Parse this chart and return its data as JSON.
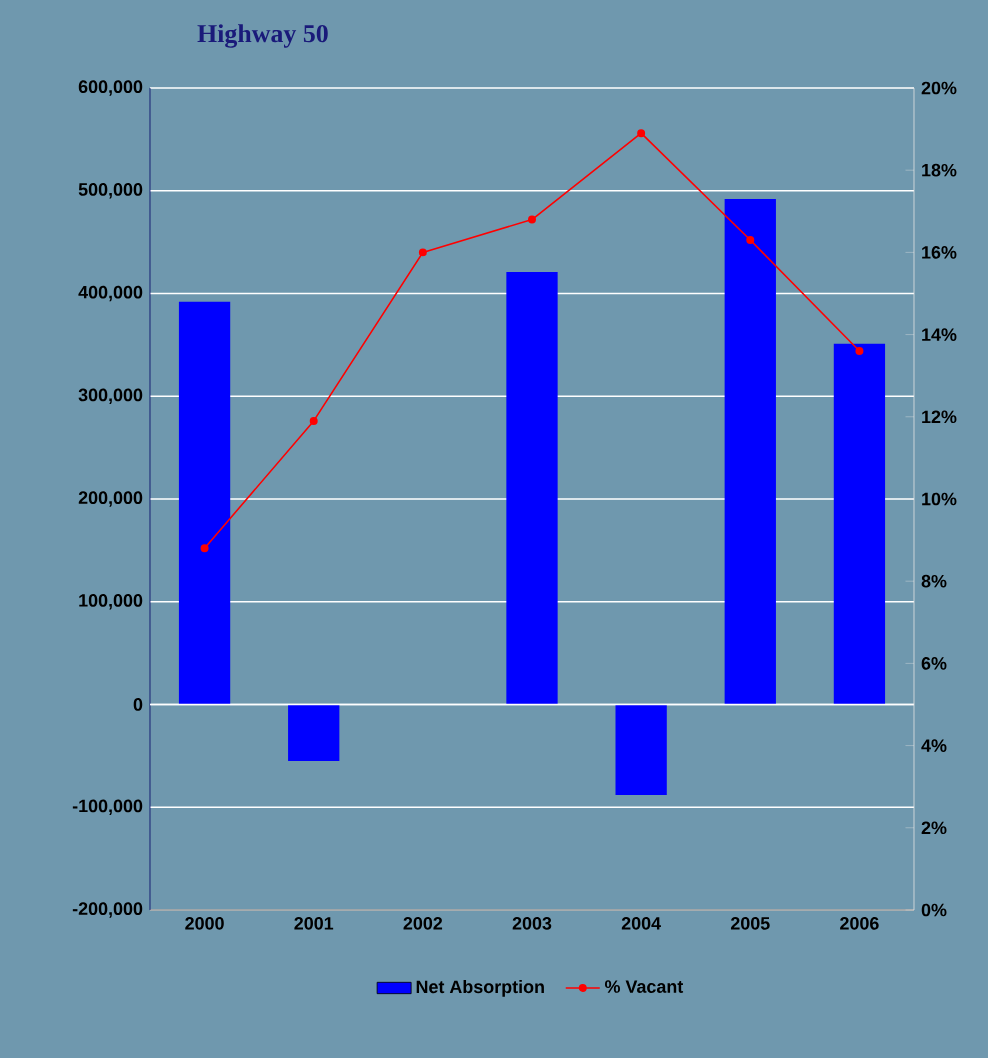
{
  "chart_data": {
    "type": "bar",
    "title": "Highway 50",
    "categories": [
      "2000",
      "2001",
      "2002",
      "2003",
      "2004",
      "2005",
      "2006"
    ],
    "series": [
      {
        "name": "Net Absorption",
        "color": "#0000ff",
        "values": [
          392000,
          -55000,
          0,
          421000,
          -88000,
          492000,
          351000
        ]
      },
      {
        "name": "% Vacant",
        "type": "line",
        "axis": "y2",
        "color": "#ff0000",
        "values": [
          8.8,
          11.9,
          16.0,
          16.8,
          18.9,
          16.3,
          13.6
        ]
      }
    ],
    "ylim": [
      -200000,
      600000
    ],
    "yticks": [
      {
        "value": -200000,
        "label": "-200,000"
      },
      {
        "value": -100000,
        "label": "-100,000"
      },
      {
        "value": 0,
        "label": "0"
      },
      {
        "value": 100000,
        "label": "100,000"
      },
      {
        "value": 200000,
        "label": "200,000"
      },
      {
        "value": 300000,
        "label": "300,000"
      },
      {
        "value": 400000,
        "label": "400,000"
      },
      {
        "value": 500000,
        "label": "500,000"
      },
      {
        "value": 600000,
        "label": "600,000"
      }
    ],
    "y2lim": [
      0,
      20
    ],
    "y2ticks": [
      {
        "value": 0,
        "label": "0%"
      },
      {
        "value": 2,
        "label": "2%"
      },
      {
        "value": 4,
        "label": "4%"
      },
      {
        "value": 6,
        "label": "6%"
      },
      {
        "value": 8,
        "label": "8%"
      },
      {
        "value": 10,
        "label": "10%"
      },
      {
        "value": 12,
        "label": "12%"
      },
      {
        "value": 14,
        "label": "14%"
      },
      {
        "value": 16,
        "label": "16%"
      },
      {
        "value": 18,
        "label": "18%"
      },
      {
        "value": 20,
        "label": "20%"
      }
    ],
    "grid": "y",
    "legend": "bottom",
    "marker": "circle",
    "line_style": "solid"
  }
}
